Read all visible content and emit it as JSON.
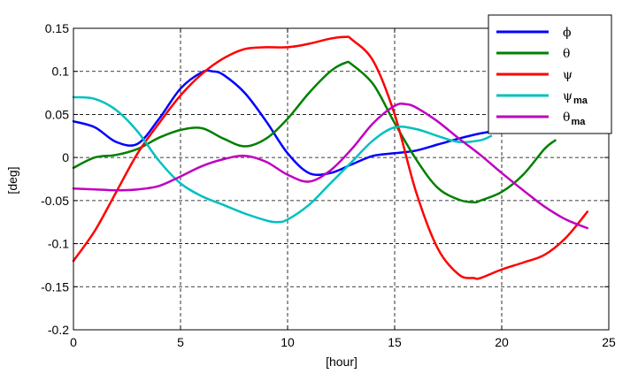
{
  "chart_data": {
    "type": "line",
    "title": "",
    "xlabel": "[hour]",
    "ylabel": "[deg]",
    "xlim": [
      0,
      25
    ],
    "ylim": [
      -0.2,
      0.15
    ],
    "xticks": [
      0,
      5,
      10,
      15,
      20,
      25
    ],
    "yticks": [
      -0.2,
      -0.15,
      -0.1,
      -0.05,
      0,
      0.05,
      0.1,
      0.15
    ],
    "xtick_labels": [
      "0",
      "5",
      "10",
      "15",
      "20",
      "25"
    ],
    "ytick_labels": [
      "-0.2",
      "-0.15",
      "-0.1",
      "-0.05",
      "0",
      "0.05",
      "0.1",
      "0.15"
    ],
    "grid": true,
    "legend_position": "top-right",
    "series": [
      {
        "name": "ϕ",
        "sub": "",
        "color": "#0000ff",
        "x": [
          0,
          1,
          2,
          3,
          4,
          5,
          6,
          6.5,
          7,
          8,
          9,
          10,
          11,
          12,
          13,
          14,
          15,
          16,
          17,
          18,
          19,
          19.5
        ],
        "y": [
          0.042,
          0.035,
          0.018,
          0.016,
          0.045,
          0.08,
          0.099,
          0.1,
          0.096,
          0.075,
          0.042,
          0.005,
          -0.018,
          -0.018,
          -0.008,
          0.002,
          0.005,
          0.008,
          0.015,
          0.022,
          0.028,
          0.03
        ]
      },
      {
        "name": "θ",
        "sub": "",
        "color": "#008000",
        "x": [
          0,
          1,
          2,
          3,
          4,
          5,
          6,
          7,
          8,
          9,
          10,
          11,
          12,
          12.7,
          13,
          14,
          15,
          16,
          17,
          18,
          18.7,
          19,
          20,
          21,
          22,
          22.5
        ],
        "y": [
          -0.012,
          0.0,
          0.003,
          0.01,
          0.023,
          0.032,
          0.034,
          0.022,
          0.013,
          0.022,
          0.045,
          0.075,
          0.1,
          0.11,
          0.108,
          0.085,
          0.04,
          -0.002,
          -0.035,
          -0.049,
          -0.052,
          -0.05,
          -0.04,
          -0.02,
          0.01,
          0.02
        ]
      },
      {
        "name": "ψ",
        "sub": "",
        "color": "#ff0000",
        "x": [
          0,
          1,
          2,
          3,
          4,
          5,
          6,
          7,
          8,
          9,
          10,
          11,
          12,
          12.7,
          13,
          14,
          15,
          16,
          17,
          18,
          18.7,
          19,
          20,
          21,
          22,
          23,
          24
        ],
        "y": [
          -0.12,
          -0.085,
          -0.04,
          0.005,
          0.04,
          0.072,
          0.097,
          0.115,
          0.126,
          0.128,
          0.128,
          0.132,
          0.138,
          0.14,
          0.137,
          0.112,
          0.05,
          -0.04,
          -0.105,
          -0.136,
          -0.14,
          -0.14,
          -0.13,
          -0.122,
          -0.113,
          -0.093,
          -0.063
        ]
      },
      {
        "name": "ψ",
        "sub": "ma",
        "color": "#00c0c0",
        "x": [
          0,
          1,
          2,
          3,
          4,
          5,
          6,
          7,
          8,
          9,
          9.5,
          10,
          11,
          12,
          13,
          14,
          15,
          16,
          17,
          18,
          19,
          19.5
        ],
        "y": [
          0.07,
          0.068,
          0.055,
          0.03,
          -0.004,
          -0.03,
          -0.045,
          -0.055,
          -0.065,
          -0.073,
          -0.075,
          -0.072,
          -0.055,
          -0.03,
          -0.005,
          0.02,
          0.035,
          0.033,
          0.025,
          0.018,
          0.02,
          0.025
        ]
      },
      {
        "name": "θ",
        "sub": "ma",
        "color": "#c000c0",
        "x": [
          0,
          1,
          2,
          3,
          4,
          5,
          6,
          7,
          8,
          9,
          10,
          11,
          12,
          13,
          14,
          15,
          15.5,
          16,
          17,
          18,
          19,
          20,
          21,
          22,
          23,
          24
        ],
        "y": [
          -0.036,
          -0.037,
          -0.038,
          -0.037,
          -0.033,
          -0.022,
          -0.01,
          -0.002,
          0.002,
          -0.005,
          -0.02,
          -0.028,
          -0.015,
          0.01,
          0.04,
          0.06,
          0.062,
          0.058,
          0.042,
          0.022,
          0.003,
          -0.018,
          -0.038,
          -0.057,
          -0.072,
          -0.082
        ]
      }
    ]
  }
}
